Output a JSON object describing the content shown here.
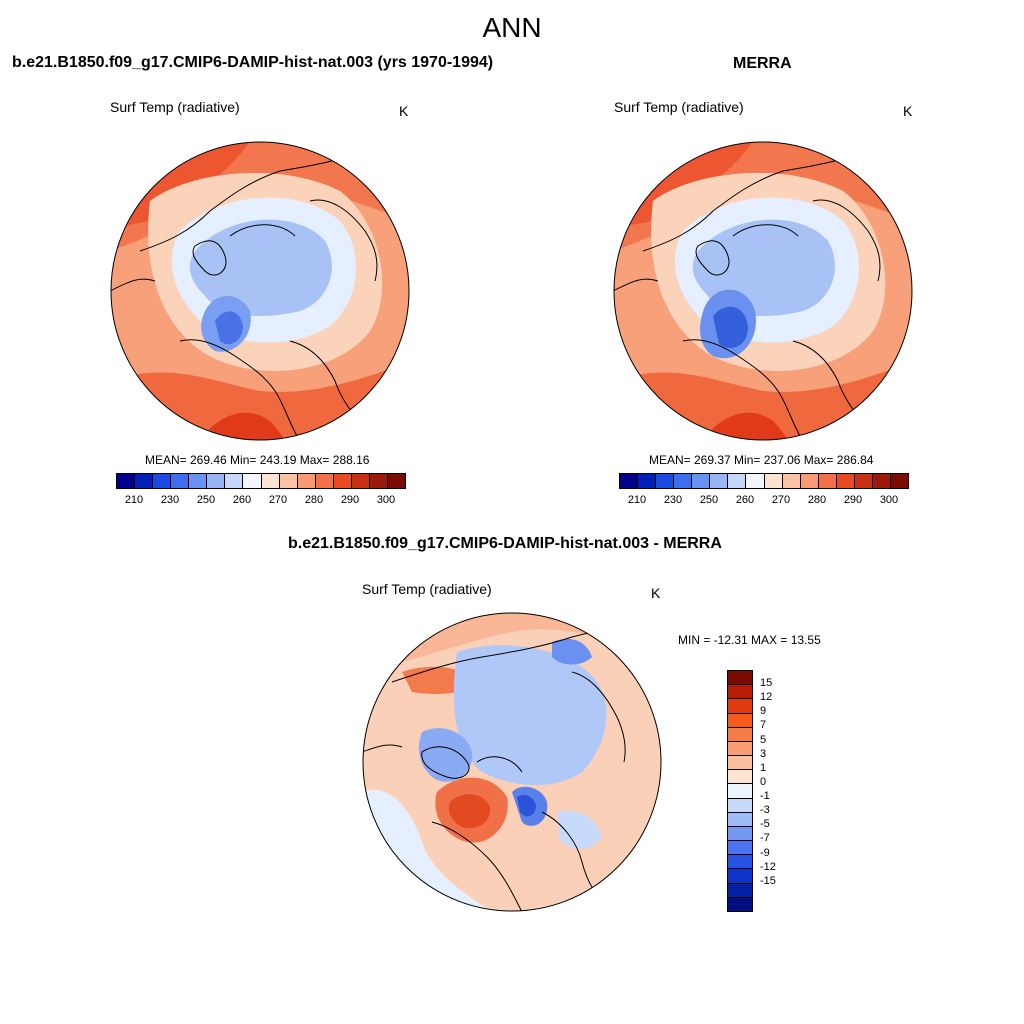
{
  "figure": {
    "title": "ANN"
  },
  "panels": [
    {
      "id": "model",
      "title": "b.e21.B1850.f09_g17.CMIP6-DAMIP-hist-nat.003 (yrs 1970-1994)",
      "variable": "Surf Temp (radiative)",
      "units": "K",
      "stats": "MEAN= 269.46  Min= 243.19  Max= 288.16"
    },
    {
      "id": "obs",
      "title": "MERRA",
      "variable": "Surf Temp (radiative)",
      "units": "K",
      "stats": "MEAN= 269.37  Min= 237.06  Max= 286.84"
    },
    {
      "id": "diff",
      "title": "b.e21.B1850.f09_g17.CMIP6-DAMIP-hist-nat.003 - MERRA",
      "variable": "Surf Temp (radiative)",
      "units": "K",
      "stats": "MIN = -12.31 MAX =  13.55"
    }
  ],
  "colorbar_abs": {
    "colors": [
      "#00008b",
      "#0020b8",
      "#1a4ae0",
      "#3e6ef0",
      "#6a92f2",
      "#98b6f6",
      "#c6d8fa",
      "#f4f6ff",
      "#fde3d0",
      "#fcc2a4",
      "#f99a74",
      "#f3704a",
      "#e94a22",
      "#c73012",
      "#9c1a0a",
      "#7a0c04"
    ],
    "ticks": [
      "210",
      "230",
      "250",
      "260",
      "270",
      "280",
      "290",
      "300"
    ]
  },
  "colorbar_diff": {
    "colors": [
      "#7a0c04",
      "#b81e06",
      "#e03a0e",
      "#f55a1c",
      "#f57c46",
      "#f79e72",
      "#f9c0a0",
      "#fde4d0",
      "#eef4ff",
      "#c8dafa",
      "#9ebcf6",
      "#7298f2",
      "#4a74ee",
      "#2652e4",
      "#0c34c8",
      "#0420a4",
      "#000e80"
    ],
    "ticks": [
      "15",
      "12",
      "9",
      "7",
      "5",
      "3",
      "1",
      "0",
      "-1",
      "-3",
      "-5",
      "-7",
      "-9",
      "-12",
      "-15"
    ]
  }
}
